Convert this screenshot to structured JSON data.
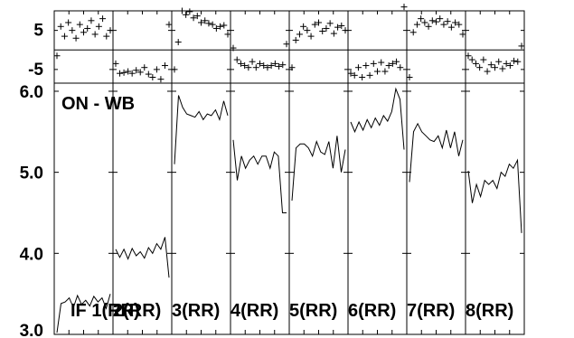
{
  "chart_data": {
    "type": "line",
    "title": "ON - WB",
    "phase_panel": {
      "type": "scatter",
      "ylim": [
        -8.5,
        10
      ],
      "yticks": [
        {
          "value": 5,
          "label": "5"
        },
        {
          "value": -5,
          "label": "-5"
        }
      ],
      "reference_line": 0,
      "marker": "+"
    },
    "amplitude_panel": {
      "ylim": [
        3.0,
        6.1
      ],
      "yticks": [
        {
          "value": 3.0,
          "label": "3.0"
        },
        {
          "value": 4.0,
          "label": "4.0"
        },
        {
          "value": 5.0,
          "label": "5.0"
        },
        {
          "value": 6.0,
          "label": "6.0"
        }
      ]
    },
    "panels": [
      {
        "label": "IF 1(RR)",
        "amplitude": [
          3.02,
          3.38,
          3.4,
          3.45,
          3.33,
          3.48,
          3.37,
          3.42,
          3.35,
          3.47,
          3.4,
          3.45,
          3.32,
          3.5
        ],
        "phase": [
          -1.5,
          6.0,
          3.5,
          7.0,
          5.0,
          3.0,
          6.5,
          4.5,
          5.5,
          7.5,
          4.0,
          6.0,
          8.0,
          3.5,
          5.0
        ]
      },
      {
        "label": "2(RR)",
        "amplitude": [
          4.05,
          3.95,
          4.05,
          3.93,
          4.06,
          3.97,
          4.02,
          3.94,
          4.07,
          4.0,
          4.12,
          4.05,
          4.2,
          3.7
        ],
        "phase": [
          -3.5,
          -6.0,
          -5.8,
          -5.5,
          -6.0,
          -5.2,
          -5.7,
          -4.5,
          -6.2,
          -7.0,
          -5.0,
          -7.5,
          -4.0,
          6.5
        ]
      },
      {
        "label": "3(RR)",
        "amplitude": [
          5.1,
          5.95,
          5.8,
          5.72,
          5.7,
          5.68,
          5.75,
          5.65,
          5.72,
          5.7,
          5.77,
          5.65,
          5.88,
          5.7
        ],
        "phase": [
          -5.0,
          2.0,
          10.0,
          9.0,
          9.8,
          8.2,
          8.7,
          7.0,
          7.5,
          6.8,
          6.5,
          5.5,
          6.0,
          6.3,
          4.0
        ]
      },
      {
        "label": "4(RR)",
        "amplitude": [
          5.4,
          4.9,
          5.2,
          5.05,
          5.15,
          5.2,
          5.1,
          5.2,
          5.2,
          5.05,
          5.25,
          5.2,
          4.5,
          4.5
        ],
        "phase": [
          0.5,
          -2.5,
          -3.5,
          -4.0,
          -4.5,
          -3.0,
          -4.5,
          -3.5,
          -4.0,
          -4.5,
          -4.0,
          -3.5,
          -4.2,
          -3.8,
          1.5
        ]
      },
      {
        "label": "5(RR)",
        "amplitude": [
          4.65,
          5.3,
          5.35,
          5.35,
          5.3,
          5.2,
          5.38,
          5.25,
          5.22,
          5.38,
          5.05,
          5.45,
          5.0,
          5.28
        ],
        "phase": [
          -4.5,
          2.5,
          4.0,
          6.0,
          5.0,
          3.5,
          6.5,
          7.0,
          4.8,
          5.5,
          6.8,
          4.2,
          5.8,
          6.2,
          5.0
        ]
      },
      {
        "label": "6(RR)",
        "amplitude": [
          5.62,
          5.5,
          5.62,
          5.52,
          5.65,
          5.55,
          5.67,
          5.58,
          5.7,
          5.63,
          5.75,
          6.03,
          5.9,
          5.28
        ],
        "phase": [
          -6.0,
          -6.5,
          -4.5,
          -7.0,
          -4.0,
          -6.5,
          -3.5,
          -5.5,
          -3.2,
          -5.5,
          -4.0,
          -3.5,
          -3.0,
          -4.5,
          11.0
        ]
      },
      {
        "label": "7(RR)",
        "amplitude": [
          4.88,
          5.5,
          5.6,
          5.5,
          5.45,
          5.4,
          5.38,
          5.45,
          5.3,
          5.52,
          5.3,
          5.5,
          5.2,
          5.4
        ],
        "phase": [
          -7.0,
          4.5,
          6.5,
          8.0,
          7.0,
          6.0,
          7.5,
          7.2,
          8.0,
          6.5,
          7.3,
          5.8,
          7.0,
          6.5,
          4.0
        ]
      },
      {
        "label": "8(RR)",
        "amplitude": [
          5.02,
          4.62,
          4.85,
          4.7,
          4.9,
          4.85,
          4.9,
          4.8,
          5.0,
          4.95,
          5.1,
          5.05,
          5.15,
          4.25
        ],
        "phase": [
          -1.5,
          -2.5,
          -3.5,
          -4.5,
          -2.5,
          -5.5,
          -3.8,
          -4.5,
          -3.0,
          -4.8,
          -3.5,
          -4.0,
          -2.8,
          -3.0,
          1.0
        ]
      }
    ]
  }
}
